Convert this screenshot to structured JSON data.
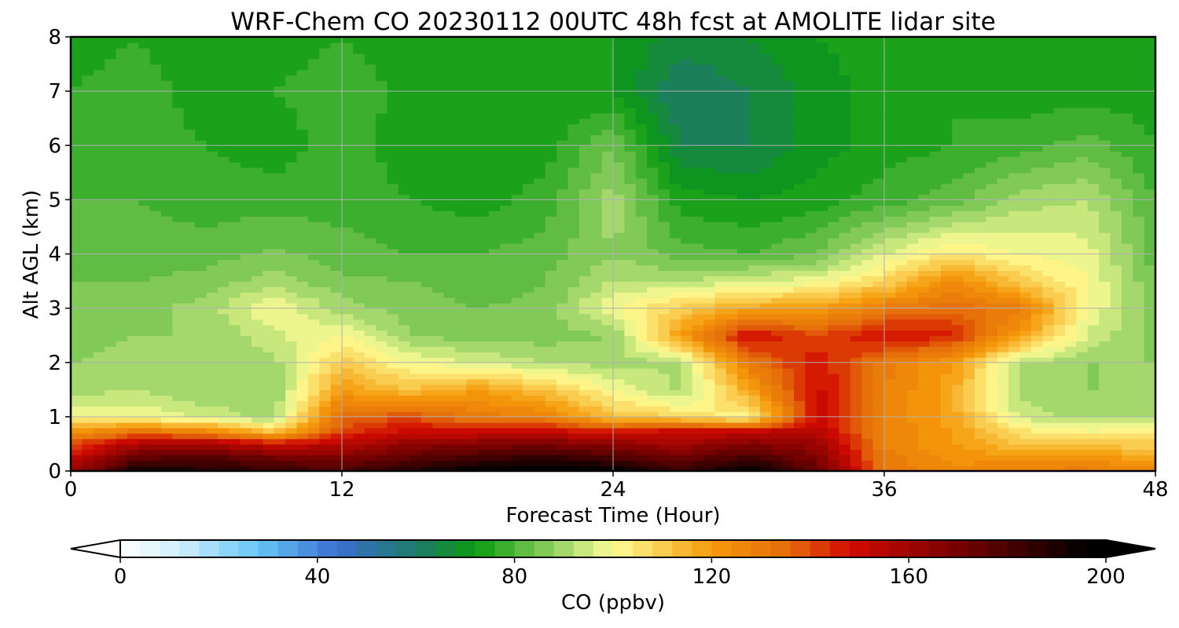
{
  "chart_data": {
    "type": "heatmap",
    "title": "WRF-Chem CO  20230112 00UTC 48h fcst at AMOLITE lidar site",
    "xlabel": "Forecast Time (Hour)",
    "ylabel": "Alt AGL (km)",
    "xlim": [
      0,
      48
    ],
    "ylim": [
      0,
      8
    ],
    "xticks": [
      "0",
      "12",
      "24",
      "36",
      "48"
    ],
    "yticks": [
      "0",
      "1",
      "2",
      "3",
      "4",
      "5",
      "6",
      "7",
      "8"
    ],
    "grid": true,
    "colorbar": {
      "label": "CO  (ppbv)",
      "min": 0,
      "max": 200,
      "step": 4,
      "ticks": [
        "0",
        "40",
        "80",
        "120",
        "160",
        "200"
      ],
      "extend": "both",
      "placement": "bottom",
      "colormap": [
        {
          "value": 0,
          "color": "#ffffff"
        },
        {
          "value": 12,
          "color": "#cfeefd"
        },
        {
          "value": 28,
          "color": "#66c6f5"
        },
        {
          "value": 44,
          "color": "#3a6fd1"
        },
        {
          "value": 60,
          "color": "#1f7a6a"
        },
        {
          "value": 72,
          "color": "#0a9a10"
        },
        {
          "value": 90,
          "color": "#a4d86c"
        },
        {
          "value": 100,
          "color": "#fffe96"
        },
        {
          "value": 120,
          "color": "#f59a0a"
        },
        {
          "value": 136,
          "color": "#e46a0a"
        },
        {
          "value": 148,
          "color": "#d20a00"
        },
        {
          "value": 172,
          "color": "#6e0000"
        },
        {
          "value": 196,
          "color": "#000000"
        }
      ]
    },
    "time_hours": [
      0,
      3,
      6,
      9,
      12,
      15,
      18,
      21,
      24,
      27,
      30,
      33,
      36,
      39,
      42,
      45,
      48
    ],
    "altitude_km": [
      0,
      0.25,
      0.5,
      0.75,
      1.0,
      1.5,
      2.0,
      2.5,
      3.0,
      3.5,
      4.0,
      5.0,
      6.0,
      7.0,
      8.0
    ],
    "values_ppbv": [
      [
        160,
        195,
        190,
        185,
        180,
        190,
        198,
        200,
        198,
        185,
        198,
        175,
        132,
        125,
        128,
        130,
        125
      ],
      [
        150,
        175,
        178,
        172,
        168,
        176,
        182,
        186,
        180,
        172,
        182,
        168,
        130,
        123,
        122,
        122,
        118
      ],
      [
        140,
        158,
        160,
        150,
        155,
        164,
        168,
        170,
        165,
        160,
        168,
        162,
        128,
        120,
        112,
        110,
        110
      ],
      [
        120,
        130,
        125,
        110,
        140,
        150,
        148,
        150,
        145,
        150,
        150,
        155,
        128,
        120,
        105,
        100,
        100
      ],
      [
        100,
        100,
        95,
        90,
        135,
        140,
        130,
        128,
        112,
        108,
        100,
        150,
        128,
        118,
        95,
        90,
        90
      ],
      [
        90,
        92,
        88,
        88,
        120,
        112,
        120,
        112,
        100,
        90,
        118,
        150,
        128,
        118,
        90,
        88,
        88
      ],
      [
        88,
        90,
        88,
        90,
        110,
        100,
        96,
        92,
        90,
        92,
        130,
        148,
        130,
        120,
        92,
        88,
        88
      ],
      [
        86,
        88,
        88,
        95,
        100,
        88,
        86,
        86,
        88,
        120,
        150,
        140,
        150,
        145,
        120,
        95,
        86
      ],
      [
        85,
        86,
        90,
        100,
        90,
        86,
        84,
        85,
        100,
        110,
        118,
        120,
        130,
        135,
        130,
        100,
        85
      ],
      [
        84,
        84,
        86,
        90,
        85,
        84,
        82,
        84,
        92,
        92,
        96,
        98,
        108,
        125,
        110,
        100,
        84
      ],
      [
        82,
        82,
        82,
        85,
        82,
        80,
        80,
        82,
        88,
        82,
        80,
        84,
        96,
        105,
        100,
        98,
        82
      ],
      [
        80,
        80,
        78,
        78,
        78,
        76,
        74,
        78,
        90,
        74,
        72,
        74,
        78,
        82,
        90,
        92,
        80
      ],
      [
        78,
        78,
        76,
        74,
        78,
        74,
        72,
        74,
        84,
        64,
        64,
        70,
        74,
        76,
        78,
        82,
        76
      ],
      [
        76,
        78,
        74,
        76,
        78,
        75,
        73,
        72,
        72,
        60,
        64,
        70,
        74,
        76,
        74,
        74,
        74
      ],
      [
        74,
        76,
        72,
        74,
        76,
        74,
        73,
        72,
        72,
        66,
        68,
        72,
        74,
        76,
        74,
        72,
        72
      ]
    ]
  }
}
